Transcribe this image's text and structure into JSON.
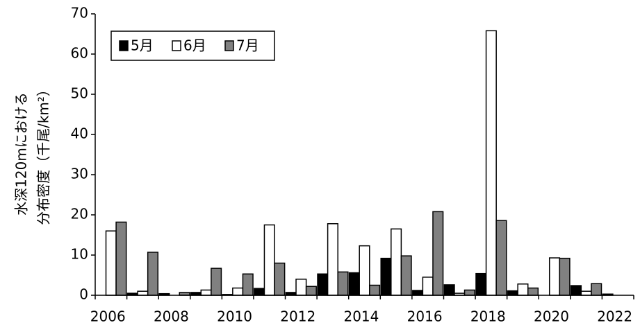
{
  "chart_data": {
    "type": "bar",
    "ylabel_lines": [
      "水深120mにおける",
      "分布密度（千尾/km²）"
    ],
    "categories": [
      "2006",
      null,
      "2008",
      null,
      "2010",
      null,
      "2012",
      null,
      "2014",
      null,
      "2016",
      null,
      "2018",
      null,
      "2020",
      null,
      "2022"
    ],
    "series": [
      {
        "name": "5月",
        "color": "#000000",
        "values": [
          0,
          0.5,
          0.4,
          0.7,
          0.2,
          1.7,
          0.7,
          5.3,
          5.6,
          9.2,
          1.2,
          2.6,
          5.4,
          1.1,
          0,
          2.4,
          0.3
        ]
      },
      {
        "name": "6月",
        "color": "#ffffff",
        "values": [
          16,
          1,
          0,
          1.3,
          1.8,
          17.5,
          4,
          17.8,
          12.3,
          16.5,
          4.5,
          0.5,
          65.8,
          2.8,
          9.3,
          1,
          0
        ]
      },
      {
        "name": "7月",
        "color": "#808080",
        "values": [
          18.2,
          10.7,
          0.7,
          6.7,
          5.3,
          8,
          2.2,
          5.8,
          2.5,
          9.8,
          20.8,
          1.3,
          18.6,
          1.8,
          9.2,
          2.9,
          0
        ]
      }
    ],
    "ylim": [
      0,
      70
    ],
    "yticks": [
      0,
      10,
      20,
      30,
      40,
      50,
      60,
      70
    ],
    "legend": "top-left",
    "grid": false
  }
}
